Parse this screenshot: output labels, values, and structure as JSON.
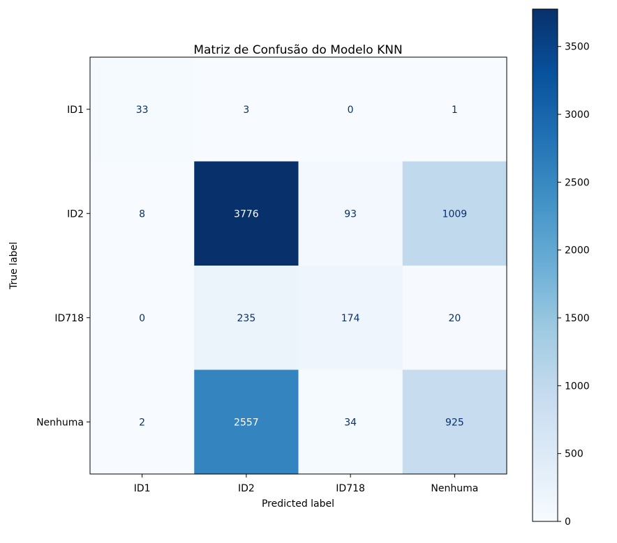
{
  "chart_data": {
    "type": "heatmap",
    "title": "Matriz de Confusão do Modelo KNN",
    "xlabel": "Predicted label",
    "ylabel": "True label",
    "x_categories": [
      "ID1",
      "ID2",
      "ID718",
      "Nenhuma"
    ],
    "y_categories": [
      "ID1",
      "ID2",
      "ID718",
      "Nenhuma"
    ],
    "values": [
      [
        33,
        3,
        0,
        1
      ],
      [
        8,
        3776,
        93,
        1009
      ],
      [
        0,
        235,
        174,
        20
      ],
      [
        2,
        2557,
        34,
        925
      ]
    ],
    "colormap": "Blues",
    "color_range": [
      0,
      3776
    ],
    "colorbar_ticks": [
      0,
      500,
      1000,
      1500,
      2000,
      2500,
      3000,
      3500
    ],
    "grid": false
  }
}
